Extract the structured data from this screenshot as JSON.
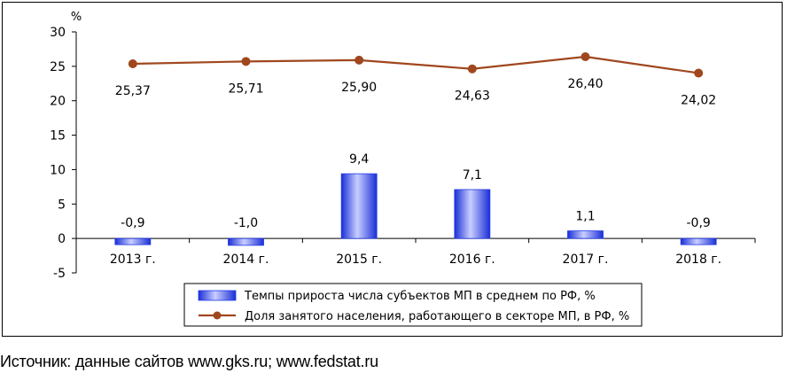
{
  "chart_data": {
    "type": "bar",
    "categories": [
      "2013 г.",
      "2014 г.",
      "2015 г.",
      "2016 г.",
      "2017 г.",
      "2018 г."
    ],
    "series": [
      {
        "name": "Темпы прироста числа субъектов МП в среднем по РФ, %",
        "kind": "bar",
        "values": [
          -0.9,
          -1.0,
          9.4,
          7.1,
          1.1,
          -0.9
        ],
        "labels": [
          "-0,9",
          "-1,0",
          "9,4",
          "7,1",
          "1,1",
          "-0,9"
        ],
        "color": "#1f37e6"
      },
      {
        "name": "Доля занятого населения, работающего в секторе МП, в РФ, %",
        "kind": "line",
        "values": [
          25.37,
          25.71,
          25.9,
          24.63,
          26.4,
          24.02
        ],
        "labels": [
          "25,37",
          "25,71",
          "25,90",
          "24,63",
          "26,40",
          "24,02"
        ],
        "color": "#a0471e"
      }
    ],
    "ylabel": "%",
    "ylim": [
      -5,
      30
    ],
    "yticks": [
      30,
      25,
      20,
      15,
      10,
      5,
      0,
      -5
    ],
    "grid": false,
    "legend_position": "bottom"
  },
  "source_note": "Источник: данные сайтов www.gks.ru; www.fedstat.ru"
}
